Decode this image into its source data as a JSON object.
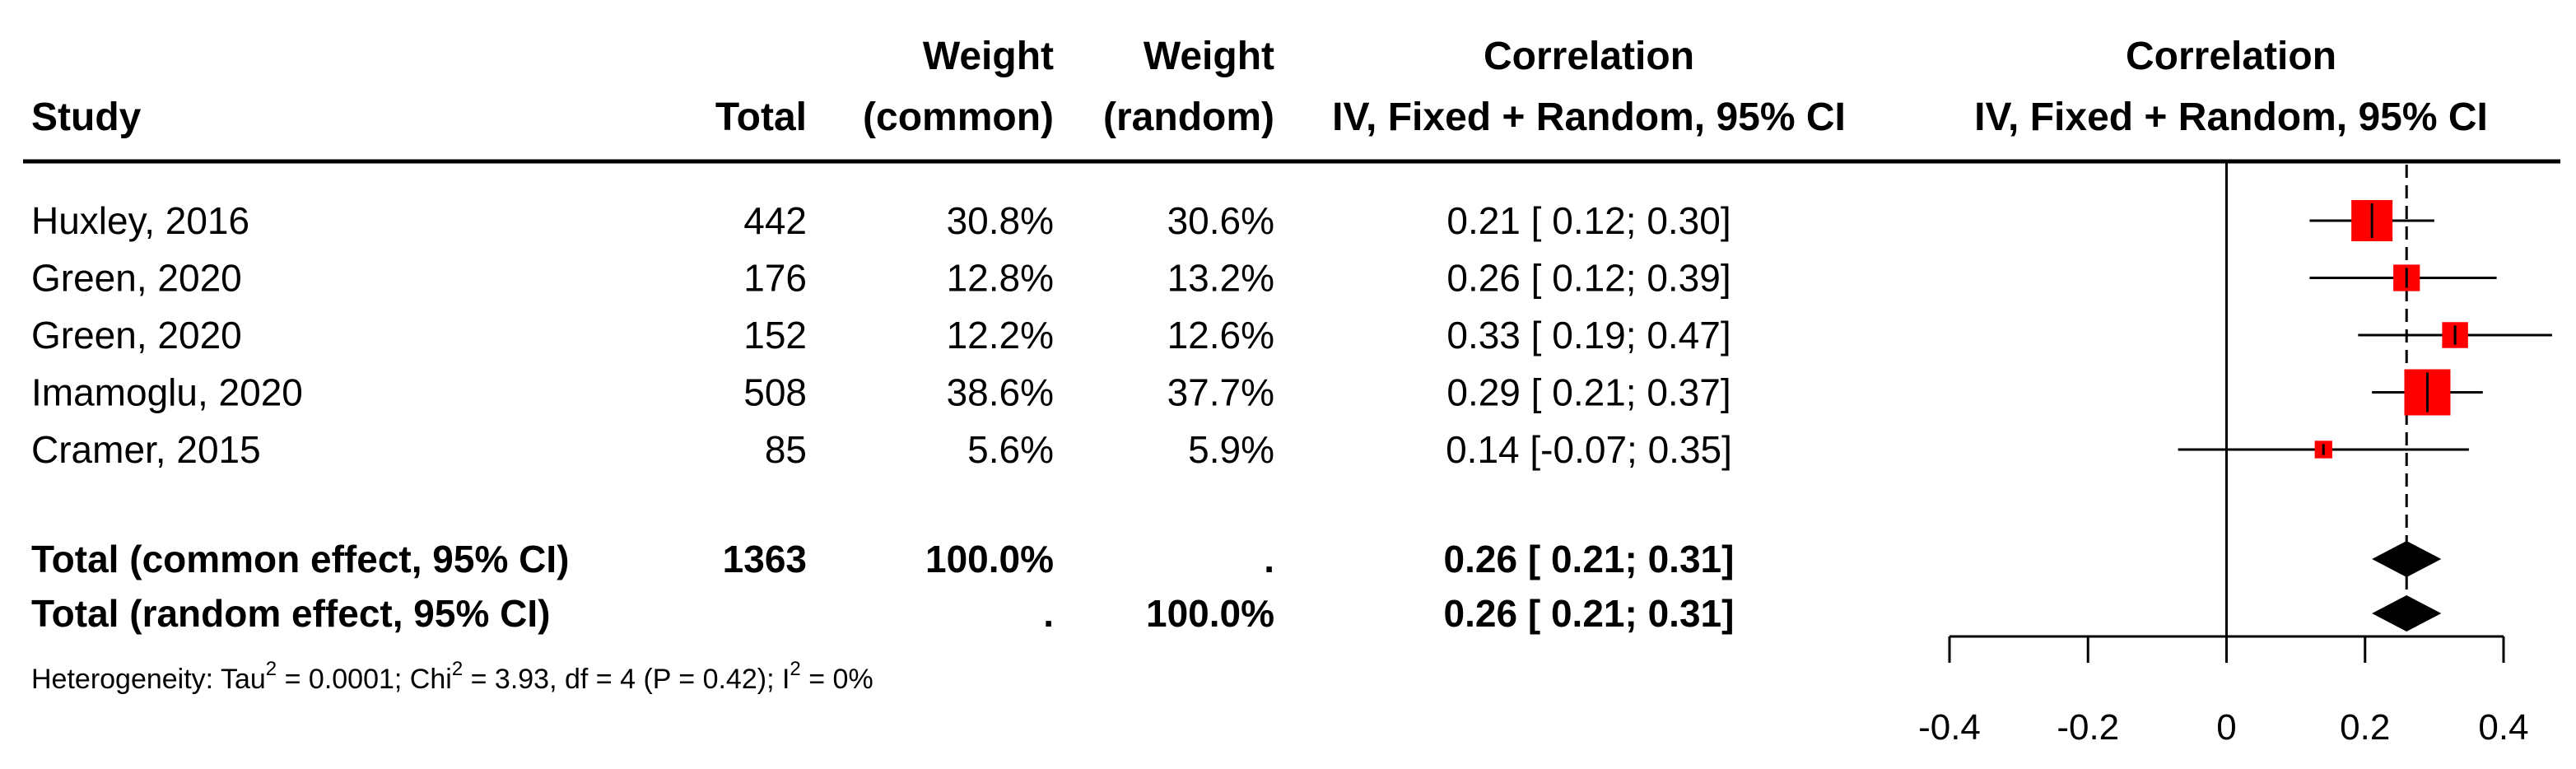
{
  "chart_data": {
    "type": "forest",
    "headers": {
      "study": "Study",
      "total": "Total",
      "weight_common": [
        "Weight",
        "(common)"
      ],
      "weight_random": [
        "Weight",
        "(random)"
      ],
      "ci_column": [
        "Correlation",
        "IV, Fixed + Random, 95% CI"
      ],
      "plot_column": [
        "Correlation",
        "IV, Fixed + Random, 95% CI"
      ]
    },
    "studies": [
      {
        "name": "Huxley, 2016",
        "total": "442",
        "weight_common": "30.8%",
        "weight_random": "30.6%",
        "ci_text": "0.21 [ 0.12; 0.30]",
        "estimate": 0.21,
        "lower": 0.12,
        "upper": 0.3,
        "weight": 30.8
      },
      {
        "name": "Green, 2020",
        "total": "176",
        "weight_common": "12.8%",
        "weight_random": "13.2%",
        "ci_text": "0.26 [ 0.12; 0.39]",
        "estimate": 0.26,
        "lower": 0.12,
        "upper": 0.39,
        "weight": 12.8
      },
      {
        "name": "Green, 2020",
        "total": "152",
        "weight_common": "12.2%",
        "weight_random": "12.6%",
        "ci_text": "0.33 [ 0.19; 0.47]",
        "estimate": 0.33,
        "lower": 0.19,
        "upper": 0.47,
        "weight": 12.2
      },
      {
        "name": "Imamoglu, 2020",
        "total": "508",
        "weight_common": "38.6%",
        "weight_random": "37.7%",
        "ci_text": "0.29 [ 0.21; 0.37]",
        "estimate": 0.29,
        "lower": 0.21,
        "upper": 0.37,
        "weight": 38.6
      },
      {
        "name": "Cramer, 2015",
        "total": "85",
        "weight_common": "5.6%",
        "weight_random": "5.9%",
        "ci_text": "0.14 [-0.07; 0.35]",
        "estimate": 0.14,
        "lower": -0.07,
        "upper": 0.35,
        "weight": 5.6
      }
    ],
    "pooled": [
      {
        "name": "Total (common effect, 95% CI)",
        "total": "1363",
        "weight_common": "100.0%",
        "weight_random": ".",
        "ci_text": "0.26 [ 0.21; 0.31]",
        "estimate": 0.26,
        "lower": 0.21,
        "upper": 0.31
      },
      {
        "name": "Total (random effect, 95% CI)",
        "total": "",
        "weight_common": ".",
        "weight_random": "100.0%",
        "ci_text": "0.26 [ 0.21; 0.31]",
        "estimate": 0.26,
        "lower": 0.21,
        "upper": 0.31
      }
    ],
    "heterogeneity": {
      "prefix": "Heterogeneity: Tau",
      "tau_sup": "2",
      "tau_value": " = 0.0001; Chi",
      "chi_sup": "2",
      "chi_value": " = 3.93, df = 4 (P = 0.42); I",
      "i_sup": "2",
      "i_value": " = 0%"
    },
    "x_axis": {
      "min": -0.4,
      "max": 0.4,
      "ticks": [
        -0.4,
        -0.2,
        0,
        0.2,
        0.4
      ],
      "tick_labels": [
        "-0.4",
        "-0.2",
        "0",
        "0.2",
        "0.4"
      ],
      "null_line": 0,
      "pooled_line": 0.26
    },
    "colors": {
      "square": "#ff0000",
      "diamond": "#000000",
      "lines": "#000000"
    }
  }
}
